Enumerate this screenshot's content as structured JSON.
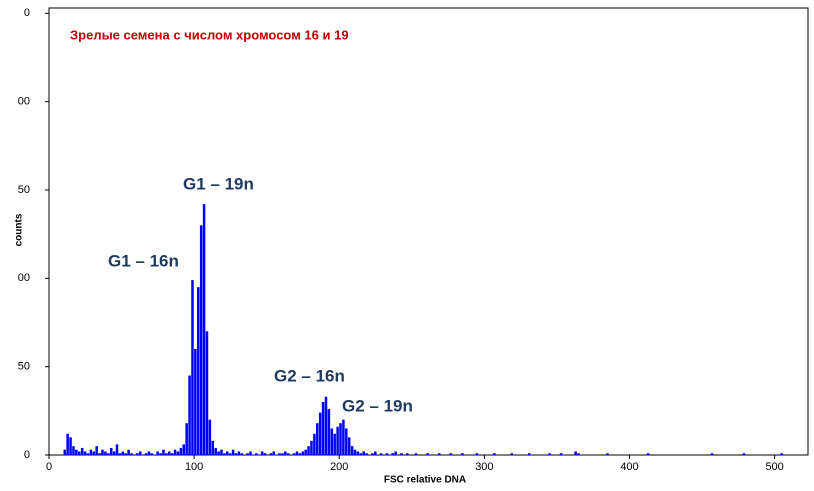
{
  "chart_data": {
    "type": "histogram",
    "title": "Зрелые семена с числом хромосом 16 и 19",
    "x_label": "FSC  relative DNA",
    "y_label": "counts",
    "annotations": [
      "G1 – 16n",
      "G1 – 19n",
      "G2 – 16n",
      "G2 – 19n"
    ],
    "color": "#0000ff",
    "xlim": [
      0,
      523
    ],
    "ylim": [
      0,
      253
    ],
    "xticks": [
      0,
      100,
      200,
      300,
      400,
      500
    ],
    "yticks": [
      0,
      50,
      {
        "value": 100,
        "label": "00"
      },
      {
        "value": 150,
        "label": "50"
      },
      {
        "value": 200,
        "label": "00"
      },
      {
        "value": 250,
        "label": "0"
      }
    ],
    "bins": [
      10,
      12,
      14,
      16,
      18,
      20,
      22,
      24,
      26,
      28,
      30,
      32,
      34,
      36,
      38,
      40,
      42,
      44,
      46,
      48,
      50,
      52,
      54,
      56,
      58,
      60,
      62,
      64,
      66,
      68,
      70,
      72,
      74,
      76,
      78,
      80,
      82,
      84,
      86,
      88,
      90,
      92,
      94,
      96,
      98,
      100,
      102,
      104,
      106,
      108,
      110,
      112,
      114,
      116,
      118,
      120,
      122,
      124,
      126,
      128,
      130,
      132,
      134,
      136,
      138,
      140,
      142,
      144,
      146,
      148,
      150,
      152,
      154,
      156,
      158,
      160,
      162,
      164,
      166,
      168,
      170,
      172,
      174,
      176,
      178,
      180,
      182,
      184,
      186,
      188,
      190,
      192,
      194,
      196,
      198,
      200,
      202,
      204,
      206,
      208,
      210,
      212,
      214,
      216,
      218,
      220,
      222,
      224,
      226,
      228,
      230,
      232,
      234,
      236,
      238,
      240,
      242,
      244,
      246,
      248,
      250,
      252,
      254,
      256,
      258,
      260,
      262,
      264,
      266,
      268,
      270,
      272,
      274,
      276,
      278,
      280,
      282,
      284,
      286,
      288,
      290,
      292,
      294,
      296,
      298,
      300,
      302,
      304,
      306,
      308,
      310,
      312,
      314,
      316,
      318,
      320,
      322,
      324,
      326,
      328,
      330,
      332,
      334,
      336,
      338,
      340,
      342,
      344,
      346,
      348,
      350,
      352,
      354,
      356,
      358,
      360,
      362,
      364,
      366,
      368,
      370,
      372,
      374,
      376,
      378,
      380,
      382,
      384,
      386,
      388,
      390,
      392,
      394,
      396,
      398,
      400,
      402,
      404,
      406,
      408,
      410,
      412,
      414,
      416,
      418,
      420,
      422,
      424,
      426,
      428,
      430,
      432,
      434,
      436,
      438,
      440,
      442,
      444,
      446,
      448,
      450,
      452,
      454,
      456,
      458,
      460,
      462,
      464,
      466,
      468,
      470,
      472,
      474,
      476,
      478,
      480,
      482,
      484,
      486,
      488,
      490,
      492,
      494,
      496,
      498,
      500,
      502,
      504,
      506,
      508,
      510,
      512,
      514,
      516,
      518,
      520
    ],
    "values": [
      3,
      12,
      10,
      5,
      3,
      2,
      4,
      2,
      1,
      3,
      2,
      5,
      1,
      3,
      2,
      1,
      4,
      2,
      6,
      1,
      2,
      1,
      3,
      1,
      0,
      1,
      2,
      0,
      1,
      2,
      1,
      0,
      2,
      1,
      3,
      1,
      2,
      1,
      3,
      2,
      4,
      6,
      18,
      45,
      99,
      60,
      95,
      130,
      142,
      70,
      20,
      8,
      4,
      2,
      3,
      1,
      2,
      1,
      3,
      1,
      2,
      1,
      0,
      1,
      2,
      0,
      1,
      0,
      2,
      1,
      0,
      1,
      2,
      0,
      1,
      1,
      2,
      1,
      0,
      1,
      2,
      1,
      2,
      3,
      5,
      8,
      12,
      18,
      24,
      30,
      33,
      26,
      15,
      12,
      16,
      18,
      20,
      15,
      10,
      5,
      3,
      2,
      1,
      2,
      1,
      0,
      1,
      2,
      0,
      1,
      0,
      1,
      0,
      1,
      2,
      0,
      1,
      0,
      1,
      0,
      0,
      1,
      0,
      0,
      0,
      1,
      0,
      0,
      0,
      1,
      0,
      0,
      0,
      1,
      0,
      0,
      0,
      1,
      0,
      0,
      0,
      0,
      1,
      0,
      0,
      0,
      0,
      0,
      1,
      0,
      0,
      0,
      0,
      0,
      1,
      0,
      0,
      0,
      0,
      0,
      1,
      0,
      0,
      0,
      0,
      0,
      0,
      1,
      0,
      0,
      0,
      1,
      0,
      0,
      0,
      0,
      2,
      1,
      0,
      0,
      0,
      0,
      0,
      0,
      0,
      0,
      0,
      1,
      0,
      0,
      0,
      0,
      0,
      0,
      0,
      0,
      0,
      0,
      0,
      0,
      0,
      1,
      0,
      0,
      0,
      0,
      0,
      0,
      0,
      0,
      0,
      0,
      0,
      0,
      0,
      0,
      0,
      0,
      0,
      0,
      0,
      0,
      0,
      1,
      0,
      0,
      0,
      0,
      0,
      0,
      0,
      0,
      0,
      0,
      1,
      0,
      0,
      0,
      0,
      0,
      0,
      0,
      0,
      0,
      0,
      0,
      0,
      1,
      0,
      0,
      0,
      0,
      0,
      0,
      0
    ]
  }
}
